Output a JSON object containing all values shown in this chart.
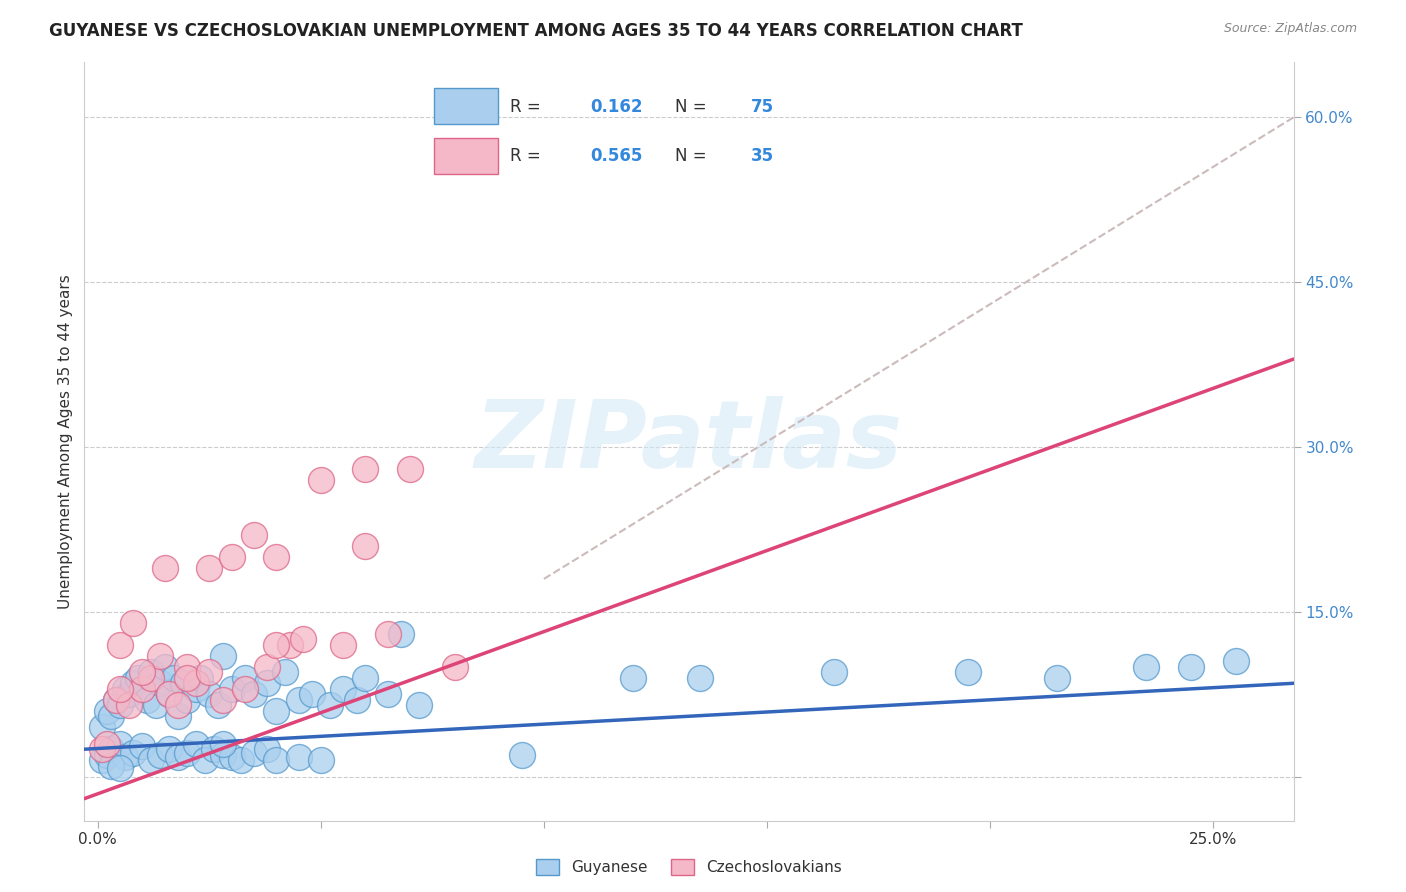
{
  "title": "GUYANESE VS CZECHOSLOVAKIAN UNEMPLOYMENT AMONG AGES 35 TO 44 YEARS CORRELATION CHART",
  "source": "Source: ZipAtlas.com",
  "ylabel": "Unemployment Among Ages 35 to 44 years",
  "xlim": [
    -0.003,
    0.268
  ],
  "ylim": [
    -0.04,
    0.65
  ],
  "x_ticks": [
    0.0,
    0.05,
    0.1,
    0.15,
    0.2,
    0.25
  ],
  "x_tick_labels": [
    "0.0%",
    "",
    "",
    "",
    "",
    "25.0%"
  ],
  "y_ticks": [
    0.0,
    0.15,
    0.3,
    0.45,
    0.6
  ],
  "y_tick_labels": [
    "",
    "15.0%",
    "30.0%",
    "45.0%",
    "60.0%"
  ],
  "guyanese_color": "#aacfee",
  "czechoslovakian_color": "#f5b8c8",
  "guyanese_edge_color": "#5599cc",
  "czechoslovakian_edge_color": "#dd6688",
  "guyanese_line_color": "#3366bb",
  "czechoslovakian_line_color": "#dd4477",
  "dashed_line_color": "#ccbbbb",
  "R_guyanese": 0.162,
  "N_guyanese": 75,
  "R_czechoslovakian": 0.565,
  "N_czechoslovakian": 35,
  "watermark_text": "ZIPatlas",
  "watermark_color": "#d0e8f5",
  "grid_color": "#cccccc",
  "title_color": "#222222",
  "source_color": "#888888",
  "label_color": "#333333",
  "right_tick_color": "#4488cc",
  "guyanese_x": [
    0.001,
    0.002,
    0.003,
    0.004,
    0.005,
    0.006,
    0.007,
    0.008,
    0.009,
    0.01,
    0.011,
    0.012,
    0.013,
    0.014,
    0.015,
    0.016,
    0.017,
    0.018,
    0.019,
    0.02,
    0.022,
    0.023,
    0.025,
    0.027,
    0.028,
    0.03,
    0.033,
    0.035,
    0.038,
    0.04,
    0.042,
    0.045,
    0.048,
    0.052,
    0.055,
    0.058,
    0.06,
    0.065,
    0.068,
    0.072,
    0.001,
    0.002,
    0.003,
    0.005,
    0.006,
    0.008,
    0.01,
    0.012,
    0.014,
    0.016,
    0.018,
    0.02,
    0.022,
    0.024,
    0.026,
    0.028,
    0.03,
    0.032,
    0.035,
    0.038,
    0.04,
    0.045,
    0.05,
    0.028,
    0.12,
    0.135,
    0.165,
    0.195,
    0.215,
    0.235,
    0.245,
    0.255,
    0.003,
    0.005,
    0.095
  ],
  "guyanese_y": [
    0.045,
    0.06,
    0.055,
    0.07,
    0.065,
    0.08,
    0.075,
    0.085,
    0.09,
    0.08,
    0.07,
    0.095,
    0.065,
    0.085,
    0.1,
    0.075,
    0.09,
    0.055,
    0.085,
    0.07,
    0.08,
    0.09,
    0.075,
    0.065,
    0.11,
    0.08,
    0.09,
    0.075,
    0.085,
    0.06,
    0.095,
    0.07,
    0.075,
    0.065,
    0.08,
    0.07,
    0.09,
    0.075,
    0.13,
    0.065,
    0.015,
    0.02,
    0.025,
    0.03,
    0.018,
    0.022,
    0.028,
    0.015,
    0.02,
    0.025,
    0.018,
    0.022,
    0.03,
    0.015,
    0.025,
    0.02,
    0.018,
    0.015,
    0.022,
    0.025,
    0.015,
    0.018,
    0.015,
    0.03,
    0.09,
    0.09,
    0.095,
    0.095,
    0.09,
    0.1,
    0.1,
    0.105,
    0.01,
    0.008,
    0.02
  ],
  "czechoslovakian_x": [
    0.001,
    0.002,
    0.004,
    0.005,
    0.007,
    0.008,
    0.01,
    0.012,
    0.014,
    0.016,
    0.018,
    0.02,
    0.022,
    0.025,
    0.028,
    0.03,
    0.033,
    0.035,
    0.038,
    0.04,
    0.043,
    0.046,
    0.05,
    0.055,
    0.06,
    0.065,
    0.07,
    0.08,
    0.06,
    0.005,
    0.01,
    0.015,
    0.02,
    0.025,
    0.04
  ],
  "czechoslovakian_y": [
    0.025,
    0.03,
    0.07,
    0.12,
    0.065,
    0.14,
    0.08,
    0.09,
    0.11,
    0.075,
    0.065,
    0.1,
    0.085,
    0.19,
    0.07,
    0.2,
    0.08,
    0.22,
    0.1,
    0.2,
    0.12,
    0.125,
    0.27,
    0.12,
    0.28,
    0.13,
    0.28,
    0.1,
    0.21,
    0.08,
    0.095,
    0.19,
    0.09,
    0.095,
    0.12
  ],
  "czech_line_x": [
    -0.003,
    0.268
  ],
  "czech_line_y": [
    -0.02,
    0.38
  ],
  "guy_line_x": [
    -0.003,
    0.268
  ],
  "guy_line_y": [
    0.025,
    0.085
  ],
  "dashed_line_x": [
    0.1,
    0.268
  ],
  "dashed_line_y": [
    0.18,
    0.6
  ]
}
